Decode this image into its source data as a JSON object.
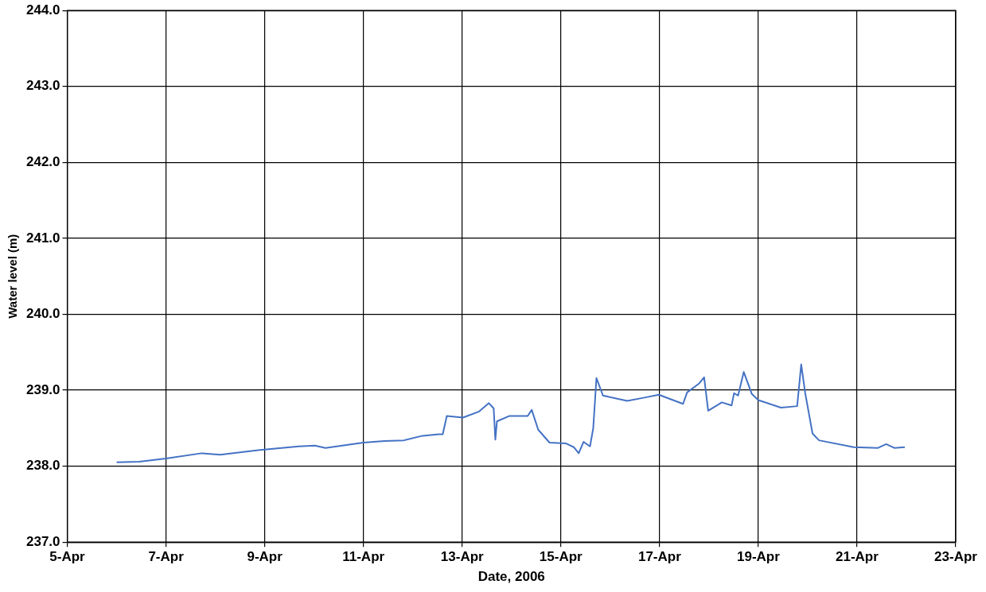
{
  "chart_data": {
    "type": "line",
    "xlabel": "Date, 2006",
    "ylabel": "Water level (m)",
    "xlim": [
      "2006-04-05",
      "2006-04-23"
    ],
    "xticks": [
      {
        "value": "2006-04-05",
        "label": "5-Apr"
      },
      {
        "value": "2006-04-07",
        "label": "7-Apr"
      },
      {
        "value": "2006-04-09",
        "label": "9-Apr"
      },
      {
        "value": "2006-04-11",
        "label": "11-Apr"
      },
      {
        "value": "2006-04-13",
        "label": "13-Apr"
      },
      {
        "value": "2006-04-15",
        "label": "15-Apr"
      },
      {
        "value": "2006-04-17",
        "label": "17-Apr"
      },
      {
        "value": "2006-04-19",
        "label": "19-Apr"
      },
      {
        "value": "2006-04-21",
        "label": "21-Apr"
      },
      {
        "value": "2006-04-23",
        "label": "23-Apr"
      }
    ],
    "ylim": [
      237,
      244
    ],
    "yticks": [
      {
        "value": 237,
        "label": "237.0"
      },
      {
        "value": 238,
        "label": "238.0"
      },
      {
        "value": 239,
        "label": "239.0"
      },
      {
        "value": 240,
        "label": "240.0"
      },
      {
        "value": 241,
        "label": "241.0"
      },
      {
        "value": 242,
        "label": "242.0"
      },
      {
        "value": 243,
        "label": "243.0"
      },
      {
        "value": 244,
        "label": "244.0"
      }
    ],
    "grid": true,
    "legend": false,
    "marker": "none",
    "line_style": "solid",
    "series": [
      {
        "color": "#4472c4",
        "x": [
          "2006-04-06T00:00",
          "2006-04-06T11:00",
          "2006-04-07T00:00",
          "2006-04-07T17:18",
          "2006-04-08T02:21",
          "2006-04-08T20:51",
          "2006-04-09T16:32",
          "2006-04-10T00:24",
          "2006-04-10T05:31",
          "2006-04-11T00:00",
          "2006-04-11T10:13",
          "2006-04-11T19:41",
          "2006-04-12T04:44",
          "2006-04-12T12:36",
          "2006-04-12T14:34",
          "2006-04-12T16:32",
          "2006-04-13T00:24",
          "2006-04-13T08:15",
          "2006-04-13T12:59",
          "2006-04-13T15:20",
          "2006-04-13T16:08",
          "2006-04-13T16:55",
          "2006-04-13T22:49",
          "2006-04-14T07:52",
          "2006-04-14T09:50",
          "2006-04-14T12:59",
          "2006-04-14T18:29",
          "2006-04-15T02:21",
          "2006-04-15T06:17",
          "2006-04-15T08:40",
          "2006-04-15T11:01",
          "2006-04-15T14:10",
          "2006-04-15T15:44",
          "2006-04-15T17:18",
          "2006-04-15T20:27",
          "2006-04-16T08:15",
          "2006-04-16T16:08",
          "2006-04-16T23:37",
          "2006-04-17T11:24",
          "2006-04-17T13:22",
          "2006-04-17T19:16",
          "2006-04-17T21:39",
          "2006-04-17T23:37",
          "2006-04-18T06:17",
          "2006-04-18T11:01",
          "2006-04-18T12:12",
          "2006-04-18T14:10",
          "2006-04-18T16:55",
          "2006-04-18T20:51",
          "2006-04-19T00:00",
          "2006-04-19T11:01",
          "2006-04-19T18:53",
          "2006-04-19T20:51",
          "2006-04-19T22:49",
          "2006-04-20T02:21",
          "2006-04-20T05:31",
          "2006-04-20T22:25",
          "2006-04-21T10:13",
          "2006-04-21T14:10",
          "2006-04-21T18:06",
          "2006-04-21T23:13"
        ],
        "values": [
          238.05,
          238.06,
          238.1,
          238.17,
          238.15,
          238.21,
          238.26,
          238.27,
          238.24,
          238.31,
          238.33,
          238.34,
          238.4,
          238.42,
          238.42,
          238.66,
          238.64,
          238.72,
          238.83,
          238.76,
          238.35,
          238.59,
          238.66,
          238.66,
          238.74,
          238.48,
          238.31,
          238.3,
          238.25,
          238.17,
          238.32,
          238.26,
          238.5,
          239.16,
          238.93,
          238.86,
          238.9,
          238.94,
          238.82,
          238.97,
          239.09,
          239.17,
          238.73,
          238.84,
          238.8,
          238.96,
          238.93,
          239.24,
          238.95,
          238.87,
          238.77,
          238.79,
          239.34,
          238.96,
          238.43,
          238.34,
          238.25,
          238.24,
          238.29,
          238.24,
          238.25
        ]
      }
    ]
  }
}
